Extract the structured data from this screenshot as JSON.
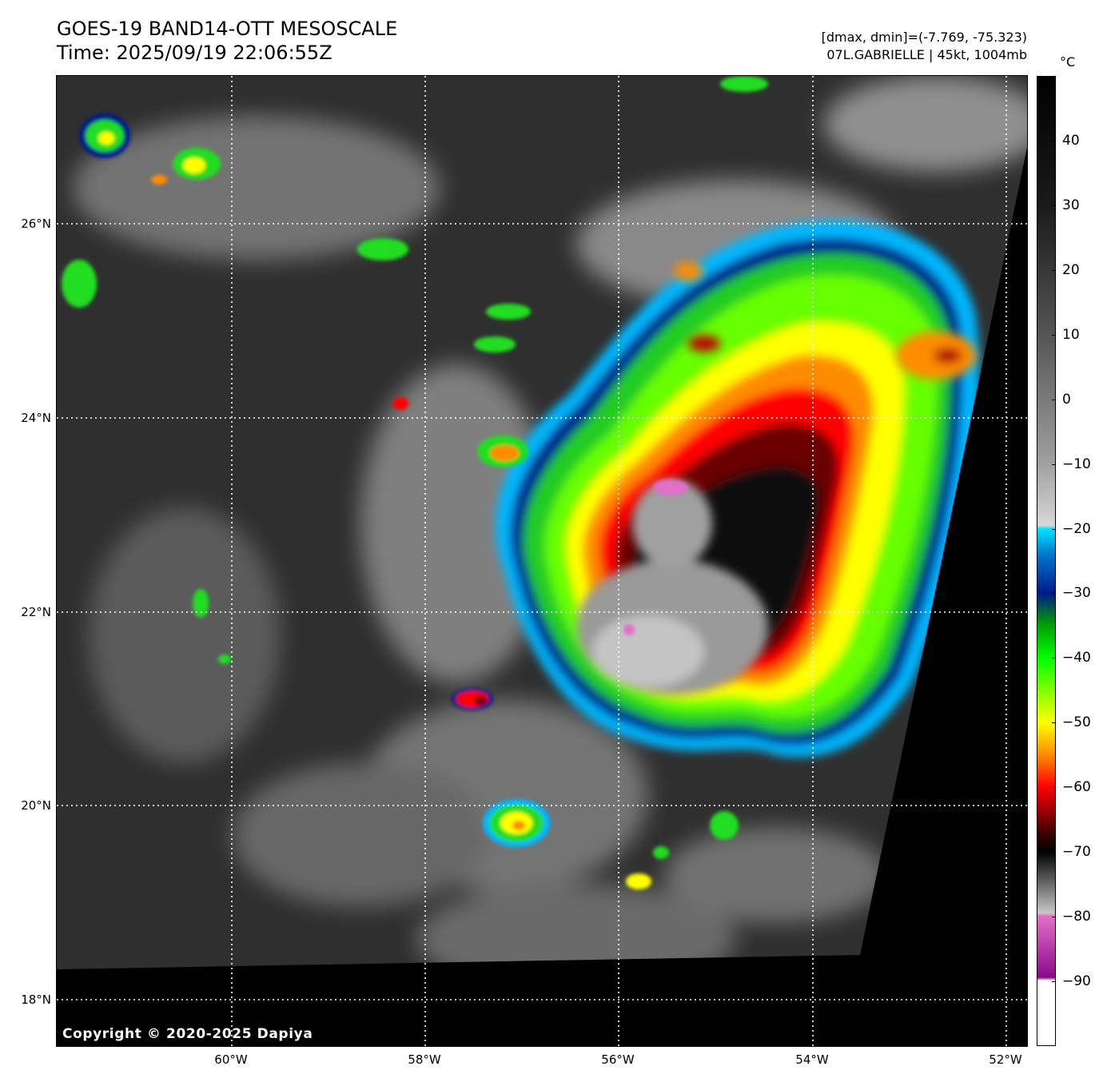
{
  "header": {
    "title_line_1": "GOES-19 BAND14-OTT MESOSCALE",
    "title_line_2": "Time: 2025/09/19 22:06:55Z",
    "meta_line_1": "[dmax, dmin]=(-7.769, -75.323)",
    "meta_line_2": "07L.GABRIELLE | 45kt, 1004mb"
  },
  "map": {
    "lat_labels": [
      "26°N",
      "24°N",
      "22°N",
      "20°N",
      "18°N"
    ],
    "lon_labels": [
      "60°W",
      "58°W",
      "56°W",
      "54°W",
      "52°W"
    ],
    "copyright": "Copyright © 2020-2025 Dapiya"
  },
  "colorbar": {
    "unit": "°C",
    "ticks": [
      "40",
      "30",
      "20",
      "10",
      "0",
      "−10",
      "−20",
      "−30",
      "−40",
      "−50",
      "−60",
      "−70",
      "−80",
      "−90"
    ],
    "range": [
      -100,
      50
    ],
    "stops": [
      {
        "temp": 50,
        "color": "#000000"
      },
      {
        "temp": 30,
        "color": "#1a1a1a"
      },
      {
        "temp": 10,
        "color": "#555555"
      },
      {
        "temp": -10,
        "color": "#a0a0a0"
      },
      {
        "temp": -19.5,
        "color": "#d8d8d8"
      },
      {
        "temp": -20,
        "color": "#00e5ff"
      },
      {
        "temp": -24,
        "color": "#0077cc"
      },
      {
        "temp": -30,
        "color": "#001a8a"
      },
      {
        "temp": -35,
        "color": "#00a000"
      },
      {
        "temp": -40,
        "color": "#00ff00"
      },
      {
        "temp": -50,
        "color": "#ffff00"
      },
      {
        "temp": -55,
        "color": "#ff8c00"
      },
      {
        "temp": -60,
        "color": "#ff0000"
      },
      {
        "temp": -67,
        "color": "#400000"
      },
      {
        "temp": -70,
        "color": "#000000"
      },
      {
        "temp": -79.5,
        "color": "#c8c8c8"
      },
      {
        "temp": -80,
        "color": "#e070c8"
      },
      {
        "temp": -89.5,
        "color": "#8a0a8a"
      },
      {
        "temp": -90,
        "color": "#ffffff"
      },
      {
        "temp": -100,
        "color": "#ffffff"
      }
    ]
  }
}
